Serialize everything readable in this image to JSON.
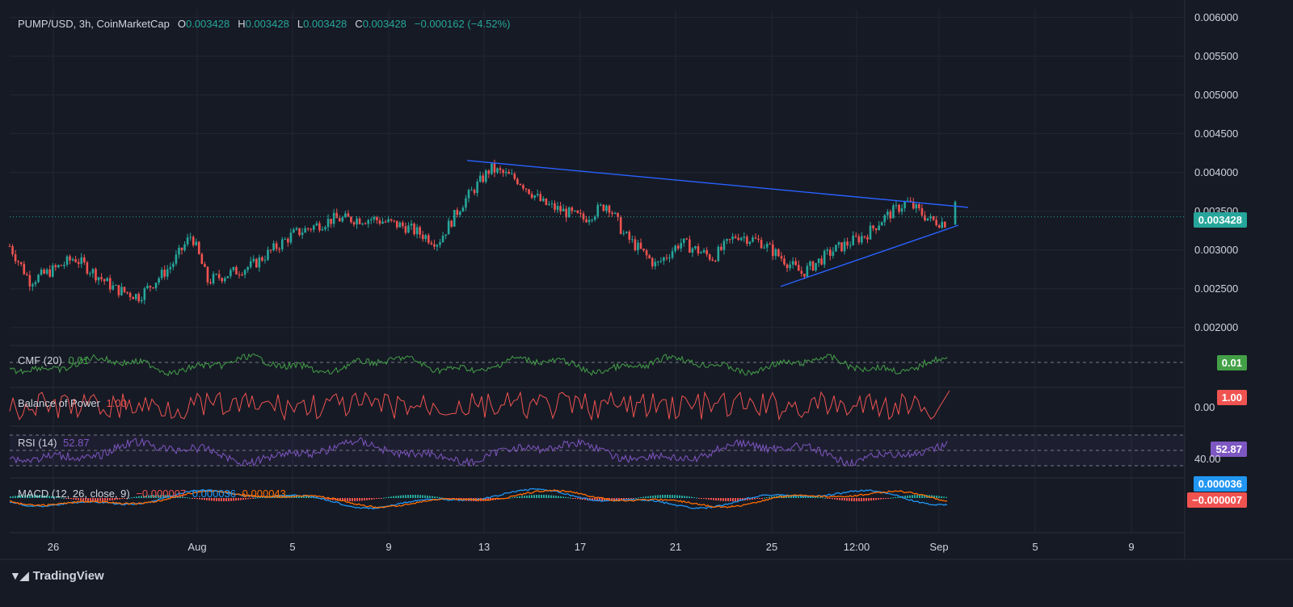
{
  "header": {
    "symbol": "PUMP/USD, 3h, CoinMarketCap",
    "o_label": "O",
    "o_value": "0.003428",
    "h_label": "H",
    "h_value": "0.003428",
    "l_label": "L",
    "l_value": "0.003428",
    "c_label": "C",
    "c_value": "0.003428",
    "change": "−0.000162 (−4.52%)"
  },
  "panes": {
    "cmf": {
      "name": "CMF (20)",
      "value": "0.01",
      "badge": "0.01",
      "color": "#43a047"
    },
    "bop": {
      "name": "Balance of Power",
      "value": "1.00",
      "badge": "1.00",
      "axis_label": "0.00",
      "color": "#ef5350"
    },
    "rsi": {
      "name": "RSI (14)",
      "value": "52.87",
      "badge": "52.87",
      "axis_label": "40.00",
      "color": "#7e57c2"
    },
    "macd": {
      "name": "MACD (12, 26, close, 9)",
      "hist_value": "−0.000007",
      "macd_value": "0.000036",
      "signal_value": "0.000043",
      "badge_macd": "0.000036",
      "badge_hist": "−0.000007",
      "macd_color": "#2196f3",
      "signal_color": "#ff6d00"
    }
  },
  "price_badge": "0.003428",
  "brand": {
    "name": "TradingView"
  },
  "colors": {
    "up": "#26a69a",
    "down": "#ef5350",
    "trendline": "#2962ff",
    "background": "#161a25"
  },
  "chart_data": {
    "type": "candlestick",
    "title": "PUMP/USD, 3h, CoinMarketCap",
    "y_ticks": [
      "0.006000",
      "0.005500",
      "0.005000",
      "0.004500",
      "0.004000",
      "0.003500",
      "0.003000",
      "0.002500",
      "0.002000"
    ],
    "ylim": [
      0.0018,
      0.0061
    ],
    "x_ticks": [
      "26",
      "Aug",
      "5",
      "9",
      "13",
      "17",
      "21",
      "25",
      "12:00",
      "Sep",
      "5",
      "9"
    ],
    "last_price": 0.003428,
    "close_path_keypoints": [
      {
        "x": 0,
        "y": 0.00305
      },
      {
        "x": 25,
        "y": 0.0026
      },
      {
        "x": 55,
        "y": 0.00275
      },
      {
        "x": 80,
        "y": 0.0029
      },
      {
        "x": 130,
        "y": 0.0025
      },
      {
        "x": 160,
        "y": 0.0024
      },
      {
        "x": 200,
        "y": 0.0028
      },
      {
        "x": 225,
        "y": 0.0032
      },
      {
        "x": 245,
        "y": 0.0026
      },
      {
        "x": 300,
        "y": 0.0028
      },
      {
        "x": 350,
        "y": 0.0032
      },
      {
        "x": 400,
        "y": 0.0034
      },
      {
        "x": 450,
        "y": 0.0034
      },
      {
        "x": 490,
        "y": 0.0033
      },
      {
        "x": 530,
        "y": 0.0031
      },
      {
        "x": 560,
        "y": 0.0036
      },
      {
        "x": 595,
        "y": 0.00405
      },
      {
        "x": 630,
        "y": 0.0039
      },
      {
        "x": 660,
        "y": 0.0036
      },
      {
        "x": 710,
        "y": 0.0034
      },
      {
        "x": 740,
        "y": 0.0036
      },
      {
        "x": 760,
        "y": 0.0032
      },
      {
        "x": 800,
        "y": 0.0028
      },
      {
        "x": 830,
        "y": 0.0031
      },
      {
        "x": 870,
        "y": 0.0029
      },
      {
        "x": 900,
        "y": 0.0032
      },
      {
        "x": 930,
        "y": 0.0031
      },
      {
        "x": 980,
        "y": 0.0027
      },
      {
        "x": 1020,
        "y": 0.003
      },
      {
        "x": 1060,
        "y": 0.0032
      },
      {
        "x": 1080,
        "y": 0.0034
      },
      {
        "x": 1110,
        "y": 0.00362
      },
      {
        "x": 1140,
        "y": 0.00338
      },
      {
        "x": 1160,
        "y": 0.00335
      },
      {
        "x": 1170,
        "y": 0.003428
      }
    ],
    "trendlines": [
      {
        "name": "upper",
        "from": {
          "x": 578,
          "y": 0.004155
        },
        "to": {
          "x": 1198,
          "y": 0.00355
        }
      },
      {
        "name": "lower",
        "from": {
          "x": 966,
          "y": 0.00253
        },
        "to": {
          "x": 1186,
          "y": 0.00332
        }
      }
    ]
  }
}
